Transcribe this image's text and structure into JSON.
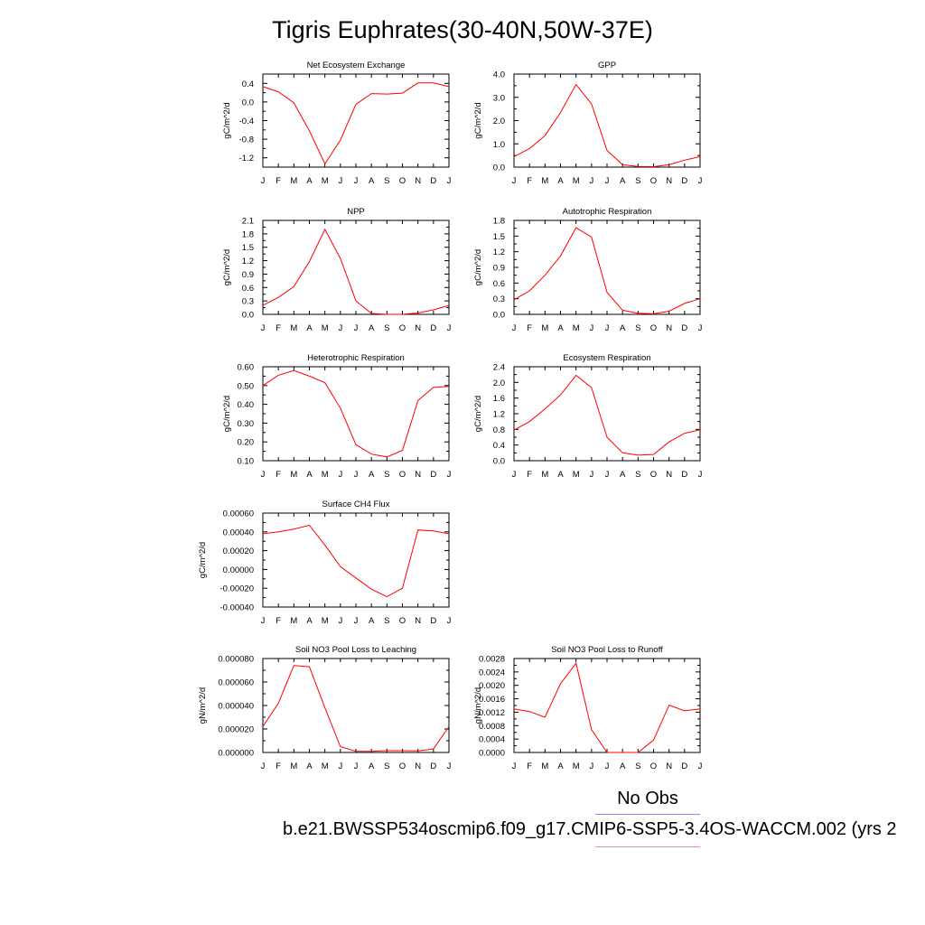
{
  "title": "Tigris Euphrates(30-40N,50W-37E)",
  "legend": {
    "title": "No Obs",
    "case": "b.e21.BWSSP534oscmip6.f09_g17.CMIP6-SSP5-3.4OS-WACCM.002 (yrs 2"
  },
  "colors": {
    "series": "#ff0000",
    "legend_obs": "#8c8cf0",
    "legend_case": "#f08c8c"
  },
  "chart_data": [
    {
      "type": "line",
      "title": "Net Ecosystem Exchange",
      "ylabel": "gC/m^2/d",
      "categories": [
        "J",
        "F",
        "M",
        "A",
        "M",
        "J",
        "J",
        "A",
        "S",
        "O",
        "N",
        "D",
        "J"
      ],
      "values": [
        0.33,
        0.22,
        -0.02,
        -0.62,
        -1.33,
        -0.82,
        -0.05,
        0.18,
        0.17,
        0.19,
        0.41,
        0.41,
        0.33
      ],
      "ylim": [
        -1.4,
        0.6
      ],
      "yticks": [
        "0.4",
        "0.0",
        "-0.4",
        "-0.8",
        "-1.2"
      ],
      "ytickvals": [
        0.4,
        0.0,
        -0.4,
        -0.8,
        -1.2
      ]
    },
    {
      "type": "line",
      "title": "GPP",
      "ylabel": "gC/m^2/d",
      "categories": [
        "J",
        "F",
        "M",
        "A",
        "M",
        "J",
        "J",
        "A",
        "S",
        "O",
        "N",
        "D",
        "J"
      ],
      "values": [
        0.45,
        0.8,
        1.35,
        2.35,
        3.55,
        2.72,
        0.72,
        0.1,
        0.03,
        0.02,
        0.1,
        0.3,
        0.45
      ],
      "ylim": [
        0.0,
        4.0
      ],
      "yticks": [
        "4.0",
        "3.0",
        "2.0",
        "1.0",
        "0.0"
      ],
      "ytickvals": [
        4.0,
        3.0,
        2.0,
        1.0,
        0.0
      ]
    },
    {
      "type": "line",
      "title": "NPP",
      "ylabel": "gC/m^2/d",
      "categories": [
        "J",
        "F",
        "M",
        "A",
        "M",
        "J",
        "J",
        "A",
        "S",
        "O",
        "N",
        "D",
        "J"
      ],
      "values": [
        0.2,
        0.38,
        0.62,
        1.18,
        1.9,
        1.25,
        0.3,
        0.02,
        0.0,
        0.0,
        0.03,
        0.1,
        0.2
      ],
      "ylim": [
        0.0,
        2.1
      ],
      "yticks": [
        "2.1",
        "1.8",
        "1.5",
        "1.2",
        "0.9",
        "0.6",
        "0.3",
        "0.0"
      ],
      "ytickvals": [
        2.1,
        1.8,
        1.5,
        1.2,
        0.9,
        0.6,
        0.3,
        0.0
      ]
    },
    {
      "type": "line",
      "title": "Autotrophic Respiration",
      "ylabel": "gC/m^2/d",
      "categories": [
        "J",
        "F",
        "M",
        "A",
        "M",
        "J",
        "J",
        "A",
        "S",
        "O",
        "N",
        "D",
        "J"
      ],
      "values": [
        0.28,
        0.45,
        0.75,
        1.12,
        1.66,
        1.48,
        0.42,
        0.08,
        0.02,
        0.01,
        0.06,
        0.21,
        0.3
      ],
      "ylim": [
        0.0,
        1.8
      ],
      "yticks": [
        "1.8",
        "1.5",
        "1.2",
        "0.9",
        "0.6",
        "0.3",
        "0.0"
      ],
      "ytickvals": [
        1.8,
        1.5,
        1.2,
        0.9,
        0.6,
        0.3,
        0.0
      ]
    },
    {
      "type": "line",
      "title": "Heterotrophic Respiration",
      "ylabel": "gC/m^2/d",
      "categories": [
        "J",
        "F",
        "M",
        "A",
        "M",
        "J",
        "J",
        "A",
        "S",
        "O",
        "N",
        "D",
        "J"
      ],
      "values": [
        0.5,
        0.555,
        0.58,
        0.55,
        0.515,
        0.38,
        0.185,
        0.135,
        0.12,
        0.155,
        0.42,
        0.49,
        0.495
      ],
      "ylim": [
        0.1,
        0.6
      ],
      "yticks": [
        "0.60",
        "0.50",
        "0.40",
        "0.30",
        "0.20",
        "0.10"
      ],
      "ytickvals": [
        0.6,
        0.5,
        0.4,
        0.3,
        0.2,
        0.1
      ]
    },
    {
      "type": "line",
      "title": "Ecosystem Respiration",
      "ylabel": "gC/m^2/d",
      "categories": [
        "J",
        "F",
        "M",
        "A",
        "M",
        "J",
        "J",
        "A",
        "S",
        "O",
        "N",
        "D",
        "J"
      ],
      "values": [
        0.78,
        1.0,
        1.32,
        1.68,
        2.18,
        1.87,
        0.6,
        0.2,
        0.14,
        0.16,
        0.48,
        0.7,
        0.79
      ],
      "ylim": [
        0.0,
        2.4
      ],
      "yticks": [
        "2.4",
        "2.0",
        "1.6",
        "1.2",
        "0.8",
        "0.4",
        "0.0"
      ],
      "ytickvals": [
        2.4,
        2.0,
        1.6,
        1.2,
        0.8,
        0.4,
        0.0
      ]
    },
    {
      "type": "line",
      "title": "Surface CH4 Flux",
      "ylabel": "gC/m^2/d",
      "categories": [
        "J",
        "F",
        "M",
        "A",
        "M",
        "J",
        "J",
        "A",
        "S",
        "O",
        "N",
        "D",
        "J"
      ],
      "values": [
        0.00038,
        0.0004,
        0.00043,
        0.00047,
        0.00026,
        3e-05,
        -9e-05,
        -0.00021,
        -0.00029,
        -0.0002,
        0.00042,
        0.00041,
        0.00038
      ],
      "ylim": [
        -0.0004,
        0.0006
      ],
      "yticks": [
        "0.00060",
        "0.00040",
        "0.00020",
        "0.00000",
        "-0.00020",
        "-0.00040"
      ],
      "ytickvals": [
        0.0006,
        0.0004,
        0.0002,
        0.0,
        -0.0002,
        -0.0004
      ]
    },
    {
      "type": "line",
      "title": "Soil NO3 Pool Loss to Leaching",
      "ylabel": "gN/m^2/d",
      "categories": [
        "J",
        "F",
        "M",
        "A",
        "M",
        "J",
        "J",
        "A",
        "S",
        "O",
        "N",
        "D",
        "J"
      ],
      "values": [
        2.2e-05,
        4.2e-05,
        7.4e-05,
        7.3e-05,
        3.8e-05,
        5e-06,
        1e-06,
        1e-06,
        1.5e-06,
        1.5e-06,
        1.3e-06,
        3e-06,
        2.2e-05
      ],
      "ylim": [
        0.0,
        8e-05
      ],
      "yticks": [
        "0.000080",
        "0.000060",
        "0.000040",
        "0.000020",
        "0.000000"
      ],
      "ytickvals": [
        8e-05,
        6e-05,
        4e-05,
        2e-05,
        0.0
      ]
    },
    {
      "type": "line",
      "title": "Soil NO3 Pool Loss to Runoff",
      "ylabel": "gN/m^2/d",
      "categories": [
        "J",
        "F",
        "M",
        "A",
        "M",
        "J",
        "J",
        "A",
        "S",
        "O",
        "N",
        "D",
        "J"
      ],
      "values": [
        0.0013,
        0.00122,
        0.00105,
        0.00205,
        0.00266,
        0.00068,
        0.0,
        0.0,
        0.0,
        0.00037,
        0.00141,
        0.00124,
        0.0013
      ],
      "ylim": [
        0.0,
        0.0028
      ],
      "yticks": [
        "0.0028",
        "0.0024",
        "0.0020",
        "0.0016",
        "0.0012",
        "0.0008",
        "0.0004",
        "0.0000"
      ],
      "ytickvals": [
        0.0028,
        0.0024,
        0.002,
        0.0016,
        0.0012,
        0.0008,
        0.0004,
        0.0
      ]
    }
  ]
}
